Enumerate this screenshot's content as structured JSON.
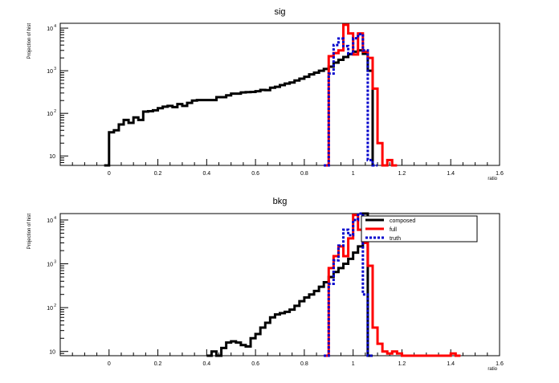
{
  "chart_data": [
    {
      "type": "line",
      "title": "sig",
      "xlabel": "ratio",
      "ylabel": "Projection of hist",
      "xlim": [
        -0.2,
        1.6
      ],
      "ylim_log": [
        6,
        13000
      ],
      "log_y": true,
      "x_ticks": [
        "0",
        "0.2",
        "0.4",
        "0.6",
        "0.8",
        "1",
        "1.2",
        "1.4",
        "1.6"
      ],
      "y_ticks": [
        {
          "value": 10,
          "label": "10",
          "exp": ""
        },
        {
          "value": 100,
          "label": "10",
          "exp": "2"
        },
        {
          "value": 1000,
          "label": "10",
          "exp": "3"
        },
        {
          "value": 10000,
          "label": "10",
          "exp": "4"
        }
      ],
      "legend": null,
      "series": [
        {
          "style": "composed",
          "color": "#000000",
          "dash": false,
          "x": [
            -0.02,
            0.0,
            0.02,
            0.04,
            0.06,
            0.08,
            0.1,
            0.12,
            0.14,
            0.16,
            0.18,
            0.2,
            0.22,
            0.24,
            0.26,
            0.28,
            0.3,
            0.32,
            0.34,
            0.36,
            0.38,
            0.4,
            0.42,
            0.44,
            0.46,
            0.48,
            0.5,
            0.52,
            0.54,
            0.56,
            0.58,
            0.6,
            0.62,
            0.64,
            0.66,
            0.68,
            0.7,
            0.72,
            0.74,
            0.76,
            0.78,
            0.8,
            0.82,
            0.84,
            0.86,
            0.88,
            0.9,
            0.92,
            0.94,
            0.96,
            0.98,
            1.0,
            1.02,
            1.04,
            1.06
          ],
          "y": [
            6,
            36,
            40,
            55,
            70,
            60,
            80,
            70,
            110,
            112,
            118,
            132,
            143,
            150,
            140,
            165,
            150,
            176,
            200,
            205,
            205,
            205,
            205,
            240,
            240,
            265,
            290,
            290,
            310,
            315,
            318,
            330,
            355,
            350,
            400,
            420,
            460,
            500,
            530,
            590,
            650,
            720,
            820,
            900,
            1000,
            1100,
            1250,
            1550,
            1800,
            2100,
            2450,
            2800,
            3000,
            2500,
            1000
          ]
        },
        {
          "style": "full",
          "color": "#ff0000",
          "dash": false,
          "x": [
            0.88,
            0.9,
            0.92,
            0.94,
            0.96,
            0.98,
            1.0,
            1.02,
            1.04,
            1.06,
            1.08,
            1.1,
            1.12,
            1.14,
            1.16
          ],
          "y": [
            6,
            2200,
            2600,
            3000,
            12000,
            7500,
            2400,
            7500,
            2800,
            2000,
            380,
            20,
            6,
            8,
            6
          ]
        },
        {
          "style": "truth",
          "color": "#0000cc",
          "dash": true,
          "x": [
            0.88,
            0.9,
            0.92,
            0.94,
            0.96,
            0.98,
            1.0,
            1.02,
            1.04,
            1.06,
            1.08
          ],
          "y": [
            6,
            860,
            4000,
            5700,
            3800,
            2500,
            5800,
            7200,
            3000,
            8,
            6
          ]
        }
      ]
    },
    {
      "type": "line",
      "title": "bkg",
      "xlabel": "ratio",
      "ylabel": "Projection of hist",
      "xlim": [
        -0.2,
        1.6
      ],
      "ylim_log": [
        8,
        14000
      ],
      "log_y": true,
      "x_ticks": [
        "0",
        "0.2",
        "0.4",
        "0.6",
        "0.8",
        "1",
        "1.2",
        "1.4",
        "1.6"
      ],
      "y_ticks": [
        {
          "value": 10,
          "label": "10",
          "exp": ""
        },
        {
          "value": 100,
          "label": "10",
          "exp": "2"
        },
        {
          "value": 1000,
          "label": "10",
          "exp": "3"
        },
        {
          "value": 10000,
          "label": "10",
          "exp": "4"
        }
      ],
      "legend": {
        "position": "top-right",
        "entries": [
          "composed",
          "full",
          "truth"
        ]
      },
      "series": [
        {
          "name": "composed",
          "color": "#000000",
          "dash": false,
          "x": [
            0.4,
            0.42,
            0.44,
            0.46,
            0.48,
            0.5,
            0.52,
            0.54,
            0.56,
            0.58,
            0.6,
            0.62,
            0.64,
            0.66,
            0.68,
            0.7,
            0.72,
            0.74,
            0.76,
            0.78,
            0.8,
            0.82,
            0.84,
            0.86,
            0.88,
            0.9,
            0.92,
            0.94,
            0.96,
            0.98,
            1.0,
            1.02,
            1.04,
            1.06
          ],
          "y": [
            8,
            10,
            8,
            12,
            16,
            17,
            16,
            14,
            13,
            20,
            25,
            35,
            45,
            60,
            70,
            75,
            80,
            90,
            110,
            140,
            170,
            200,
            240,
            300,
            380,
            500,
            650,
            800,
            1000,
            1300,
            1800,
            2500,
            14000,
            8
          ]
        },
        {
          "name": "full",
          "color": "#ff0000",
          "dash": false,
          "x": [
            0.88,
            0.9,
            0.92,
            0.94,
            0.96,
            0.98,
            1.0,
            1.02,
            1.04,
            1.06,
            1.08,
            1.1,
            1.12,
            1.14,
            1.16,
            1.18,
            1.2,
            1.22,
            1.38,
            1.4,
            1.42
          ],
          "y": [
            8,
            800,
            1500,
            2500,
            1500,
            3800,
            13000,
            6000,
            3000,
            900,
            35,
            15,
            10,
            9,
            10,
            9,
            8,
            8,
            8,
            9,
            8
          ]
        },
        {
          "name": "truth",
          "color": "#0000cc",
          "dash": true,
          "x": [
            0.88,
            0.9,
            0.92,
            0.94,
            0.96,
            0.98,
            1.0,
            1.02,
            1.04,
            1.06
          ],
          "y": [
            8,
            350,
            1200,
            2600,
            6000,
            4500,
            10000,
            14000,
            200,
            8
          ]
        }
      ]
    }
  ]
}
